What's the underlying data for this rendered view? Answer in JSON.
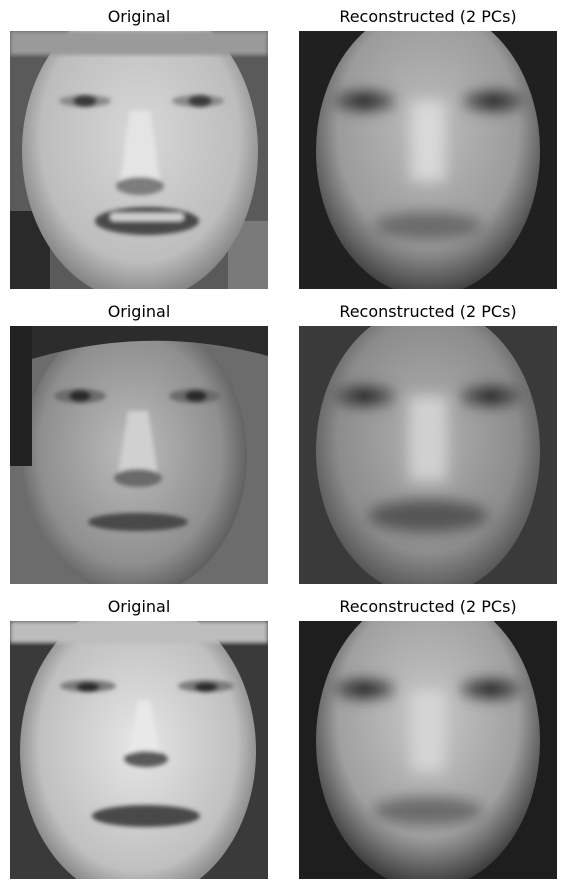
{
  "figure": {
    "rows": [
      {
        "original_title": "Original",
        "reconstructed_title": "Reconstructed (2 PCs)"
      },
      {
        "original_title": "Original",
        "reconstructed_title": "Reconstructed (2 PCs)"
      },
      {
        "original_title": "Original",
        "reconstructed_title": "Reconstructed (2 PCs)"
      }
    ]
  },
  "colors": {
    "background": "#ffffff",
    "title_text": "#000000",
    "gray_dark": "#1e1e1e",
    "gray_mid": "#8a8a8a",
    "gray_light": "#e6e6e6"
  }
}
